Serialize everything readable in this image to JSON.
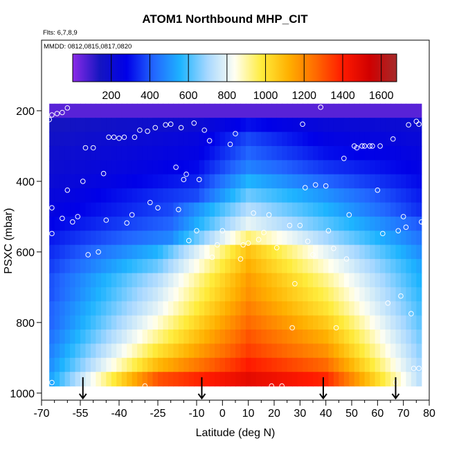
{
  "chart_data": {
    "type": "heatmap",
    "title": "ATOM1 Northbound MHP_CIT",
    "subtitle_flights": "Flts: 6,7,8,9",
    "subtitle_dates": "MMDD: 0812,0815,0817,0820",
    "xlabel": "Latitude (deg N)",
    "ylabel": "PSXC (mbar)",
    "xlim": [
      -70,
      80
    ],
    "ylim": [
      1020,
      0
    ],
    "x_ticks": [
      -70,
      -55,
      -40,
      -25,
      -10,
      0,
      10,
      20,
      30,
      40,
      50,
      60,
      70,
      80
    ],
    "x_minor_ticks": [
      -65,
      -60,
      -50,
      -45,
      -35,
      -30,
      -20,
      -15,
      -5,
      5,
      15,
      25,
      35,
      45,
      55,
      65,
      75
    ],
    "x_tick_labels": [
      "-70",
      "-55",
      "-40",
      "-25",
      "-10",
      "0",
      "10",
      "20",
      "30",
      "40",
      "50",
      "60",
      "70",
      "80"
    ],
    "y_ticks": [
      200,
      400,
      600,
      800,
      1000
    ],
    "y_tick_labels": [
      "200",
      "400",
      "600",
      "800",
      "1000"
    ],
    "colorbar": {
      "range": [
        0,
        1680
      ],
      "ticks": [
        200,
        400,
        600,
        800,
        1000,
        1200,
        1400,
        1600
      ],
      "tick_labels": [
        "200",
        "400",
        "600",
        "800",
        "1000",
        "1200",
        "1400",
        "1600"
      ],
      "colors": [
        "#8B2BE8",
        "#1515C0",
        "#0000E8",
        "#2266FF",
        "#1EB4FF",
        "#A8D8FF",
        "#FFFFF2",
        "#FFEC3C",
        "#FFB000",
        "#FF6A00",
        "#FF1A00",
        "#D00000",
        "#A52A2A"
      ]
    },
    "grid_data": {
      "lat_range": [
        -67,
        76
      ],
      "lat_step": 2,
      "p_bins": [
        {
          "top": 180,
          "bottom": 220,
          "values": [
            {
              "lat": -70,
              "v": 60
            },
            {
              "lat": 80,
              "v": 60
            }
          ]
        },
        {
          "top": 220,
          "bottom": 260,
          "values": [
            {
              "lat": -70,
              "v": 140
            },
            {
              "lat": -10,
              "v": 200
            },
            {
              "lat": 10,
              "v": 300
            },
            {
              "lat": 40,
              "v": 220
            },
            {
              "lat": 80,
              "v": 200
            }
          ]
        },
        {
          "top": 260,
          "bottom": 300,
          "values": [
            {
              "lat": -70,
              "v": 160
            },
            {
              "lat": -10,
              "v": 240
            },
            {
              "lat": 10,
              "v": 380
            },
            {
              "lat": 40,
              "v": 260
            },
            {
              "lat": 80,
              "v": 220
            }
          ]
        },
        {
          "top": 300,
          "bottom": 340,
          "values": [
            {
              "lat": -70,
              "v": 180
            },
            {
              "lat": -10,
              "v": 260
            },
            {
              "lat": 10,
              "v": 420
            },
            {
              "lat": 40,
              "v": 300
            },
            {
              "lat": 80,
              "v": 240
            }
          ]
        },
        {
          "top": 340,
          "bottom": 380,
          "values": [
            {
              "lat": -70,
              "v": 190
            },
            {
              "lat": -10,
              "v": 290
            },
            {
              "lat": 10,
              "v": 470
            },
            {
              "lat": 40,
              "v": 350
            },
            {
              "lat": 80,
              "v": 260
            }
          ]
        },
        {
          "top": 380,
          "bottom": 420,
          "values": [
            {
              "lat": -70,
              "v": 200
            },
            {
              "lat": -10,
              "v": 330
            },
            {
              "lat": 10,
              "v": 560
            },
            {
              "lat": 40,
              "v": 420
            },
            {
              "lat": 80,
              "v": 280
            }
          ]
        },
        {
          "top": 420,
          "bottom": 460,
          "values": [
            {
              "lat": -70,
              "v": 220
            },
            {
              "lat": -10,
              "v": 380
            },
            {
              "lat": 10,
              "v": 640
            },
            {
              "lat": 40,
              "v": 500
            },
            {
              "lat": 80,
              "v": 300
            }
          ]
        },
        {
          "top": 460,
          "bottom": 500,
          "values": [
            {
              "lat": -70,
              "v": 240
            },
            {
              "lat": -20,
              "v": 380
            },
            {
              "lat": 10,
              "v": 720
            },
            {
              "lat": 40,
              "v": 560
            },
            {
              "lat": 80,
              "v": 320
            }
          ]
        },
        {
          "top": 500,
          "bottom": 540,
          "values": [
            {
              "lat": -70,
              "v": 270
            },
            {
              "lat": -20,
              "v": 420
            },
            {
              "lat": 10,
              "v": 800
            },
            {
              "lat": 40,
              "v": 620
            },
            {
              "lat": 80,
              "v": 380
            }
          ]
        },
        {
          "top": 540,
          "bottom": 580,
          "values": [
            {
              "lat": -70,
              "v": 300
            },
            {
              "lat": -20,
              "v": 480
            },
            {
              "lat": 10,
              "v": 940
            },
            {
              "lat": 40,
              "v": 700
            },
            {
              "lat": 80,
              "v": 420
            }
          ]
        },
        {
          "top": 580,
          "bottom": 620,
          "values": [
            {
              "lat": -70,
              "v": 320
            },
            {
              "lat": -25,
              "v": 560
            },
            {
              "lat": 10,
              "v": 1080
            },
            {
              "lat": 40,
              "v": 800
            },
            {
              "lat": 80,
              "v": 460
            }
          ]
        },
        {
          "top": 620,
          "bottom": 660,
          "values": [
            {
              "lat": -70,
              "v": 340
            },
            {
              "lat": -25,
              "v": 640
            },
            {
              "lat": 10,
              "v": 1120
            },
            {
              "lat": 40,
              "v": 860
            },
            {
              "lat": 80,
              "v": 500
            }
          ]
        },
        {
          "top": 660,
          "bottom": 700,
          "values": [
            {
              "lat": -70,
              "v": 360
            },
            {
              "lat": -25,
              "v": 720
            },
            {
              "lat": 10,
              "v": 1160
            },
            {
              "lat": 40,
              "v": 920
            },
            {
              "lat": 80,
              "v": 520
            }
          ]
        },
        {
          "top": 700,
          "bottom": 740,
          "values": [
            {
              "lat": -70,
              "v": 360
            },
            {
              "lat": -25,
              "v": 760
            },
            {
              "lat": 10,
              "v": 1180
            },
            {
              "lat": 40,
              "v": 960
            },
            {
              "lat": 80,
              "v": 540
            }
          ]
        },
        {
          "top": 740,
          "bottom": 780,
          "values": [
            {
              "lat": -70,
              "v": 380
            },
            {
              "lat": -25,
              "v": 800
            },
            {
              "lat": 10,
              "v": 1220
            },
            {
              "lat": 40,
              "v": 1000
            },
            {
              "lat": 80,
              "v": 560
            }
          ]
        },
        {
          "top": 780,
          "bottom": 820,
          "values": [
            {
              "lat": -70,
              "v": 380
            },
            {
              "lat": -25,
              "v": 860
            },
            {
              "lat": 10,
              "v": 1260
            },
            {
              "lat": 40,
              "v": 1060
            },
            {
              "lat": 80,
              "v": 580
            }
          ]
        },
        {
          "top": 820,
          "bottom": 860,
          "values": [
            {
              "lat": -70,
              "v": 400
            },
            {
              "lat": -25,
              "v": 920
            },
            {
              "lat": 10,
              "v": 1300
            },
            {
              "lat": 40,
              "v": 1120
            },
            {
              "lat": 80,
              "v": 600
            }
          ]
        },
        {
          "top": 860,
          "bottom": 900,
          "values": [
            {
              "lat": -70,
              "v": 420
            },
            {
              "lat": -25,
              "v": 1000
            },
            {
              "lat": 10,
              "v": 1340
            },
            {
              "lat": 40,
              "v": 1180
            },
            {
              "lat": 80,
              "v": 620
            }
          ]
        },
        {
          "top": 900,
          "bottom": 940,
          "values": [
            {
              "lat": -70,
              "v": 440
            },
            {
              "lat": -25,
              "v": 1100
            },
            {
              "lat": 10,
              "v": 1400
            },
            {
              "lat": 40,
              "v": 1260
            },
            {
              "lat": 80,
              "v": 640
            }
          ]
        },
        {
          "top": 940,
          "bottom": 980,
          "values": [
            {
              "lat": -70,
              "v": 460
            },
            {
              "lat": -25,
              "v": 1300
            },
            {
              "lat": 10,
              "v": 1480
            },
            {
              "lat": 40,
              "v": 1380
            },
            {
              "lat": 80,
              "v": 660
            }
          ]
        }
      ]
    },
    "sample_points": [
      [
        -67,
        225
      ],
      [
        -66,
        212
      ],
      [
        -64,
        208
      ],
      [
        -62,
        205
      ],
      [
        -60,
        192
      ],
      [
        -66,
        475
      ],
      [
        -66,
        548
      ],
      [
        -66,
        970
      ],
      [
        -62,
        505
      ],
      [
        -60,
        425
      ],
      [
        -58,
        515
      ],
      [
        -56,
        500
      ],
      [
        -54,
        400
      ],
      [
        -53,
        305
      ],
      [
        -52,
        608
      ],
      [
        -50,
        305
      ],
      [
        -48,
        600
      ],
      [
        -46,
        378
      ],
      [
        -45,
        510
      ],
      [
        -44,
        275
      ],
      [
        -42,
        275
      ],
      [
        -40,
        278
      ],
      [
        -38,
        275
      ],
      [
        -37,
        518
      ],
      [
        -35,
        495
      ],
      [
        -34,
        275
      ],
      [
        -32,
        255
      ],
      [
        -30,
        980
      ],
      [
        -29,
        258
      ],
      [
        -28,
        460
      ],
      [
        -26,
        248
      ],
      [
        -25,
        475
      ],
      [
        -22,
        240
      ],
      [
        -20,
        238
      ],
      [
        -18,
        360
      ],
      [
        -17,
        480
      ],
      [
        -16,
        248
      ],
      [
        -15,
        395
      ],
      [
        -14,
        380
      ],
      [
        -13,
        568
      ],
      [
        -11,
        235
      ],
      [
        -10,
        540
      ],
      [
        -9,
        395
      ],
      [
        -7,
        255
      ],
      [
        -5,
        285
      ],
      [
        -4,
        615
      ],
      [
        -2,
        580
      ],
      [
        0,
        540
      ],
      [
        3,
        295
      ],
      [
        5,
        265
      ],
      [
        7,
        620
      ],
      [
        8,
        580
      ],
      [
        10,
        575
      ],
      [
        12,
        490
      ],
      [
        14,
        565
      ],
      [
        16,
        545
      ],
      [
        18,
        495
      ],
      [
        19,
        980
      ],
      [
        21,
        588
      ],
      [
        23,
        980
      ],
      [
        26,
        525
      ],
      [
        27,
        815
      ],
      [
        28,
        690
      ],
      [
        30,
        525
      ],
      [
        31,
        238
      ],
      [
        32,
        418
      ],
      [
        33,
        570
      ],
      [
        35,
        608
      ],
      [
        36,
        410
      ],
      [
        38,
        190
      ],
      [
        40,
        413
      ],
      [
        41,
        540
      ],
      [
        43,
        590
      ],
      [
        44,
        815
      ],
      [
        47,
        335
      ],
      [
        48,
        620
      ],
      [
        49,
        495
      ],
      [
        51,
        300
      ],
      [
        52,
        305
      ],
      [
        54,
        300
      ],
      [
        55,
        300
      ],
      [
        57,
        300
      ],
      [
        58,
        300
      ],
      [
        60,
        425
      ],
      [
        61,
        300
      ],
      [
        62,
        548
      ],
      [
        64,
        745
      ],
      [
        66,
        280
      ],
      [
        67,
        970
      ],
      [
        68,
        540
      ],
      [
        69,
        725
      ],
      [
        70,
        500
      ],
      [
        71,
        530
      ],
      [
        73,
        775
      ],
      [
        74,
        930
      ],
      [
        76,
        930
      ],
      [
        77,
        515
      ],
      [
        78,
        520
      ],
      [
        79,
        455
      ],
      [
        80,
        460
      ],
      [
        75,
        230
      ],
      [
        76,
        238
      ],
      [
        72,
        240
      ]
    ],
    "arrows_lat": [
      -54,
      -8,
      39,
      67
    ]
  }
}
